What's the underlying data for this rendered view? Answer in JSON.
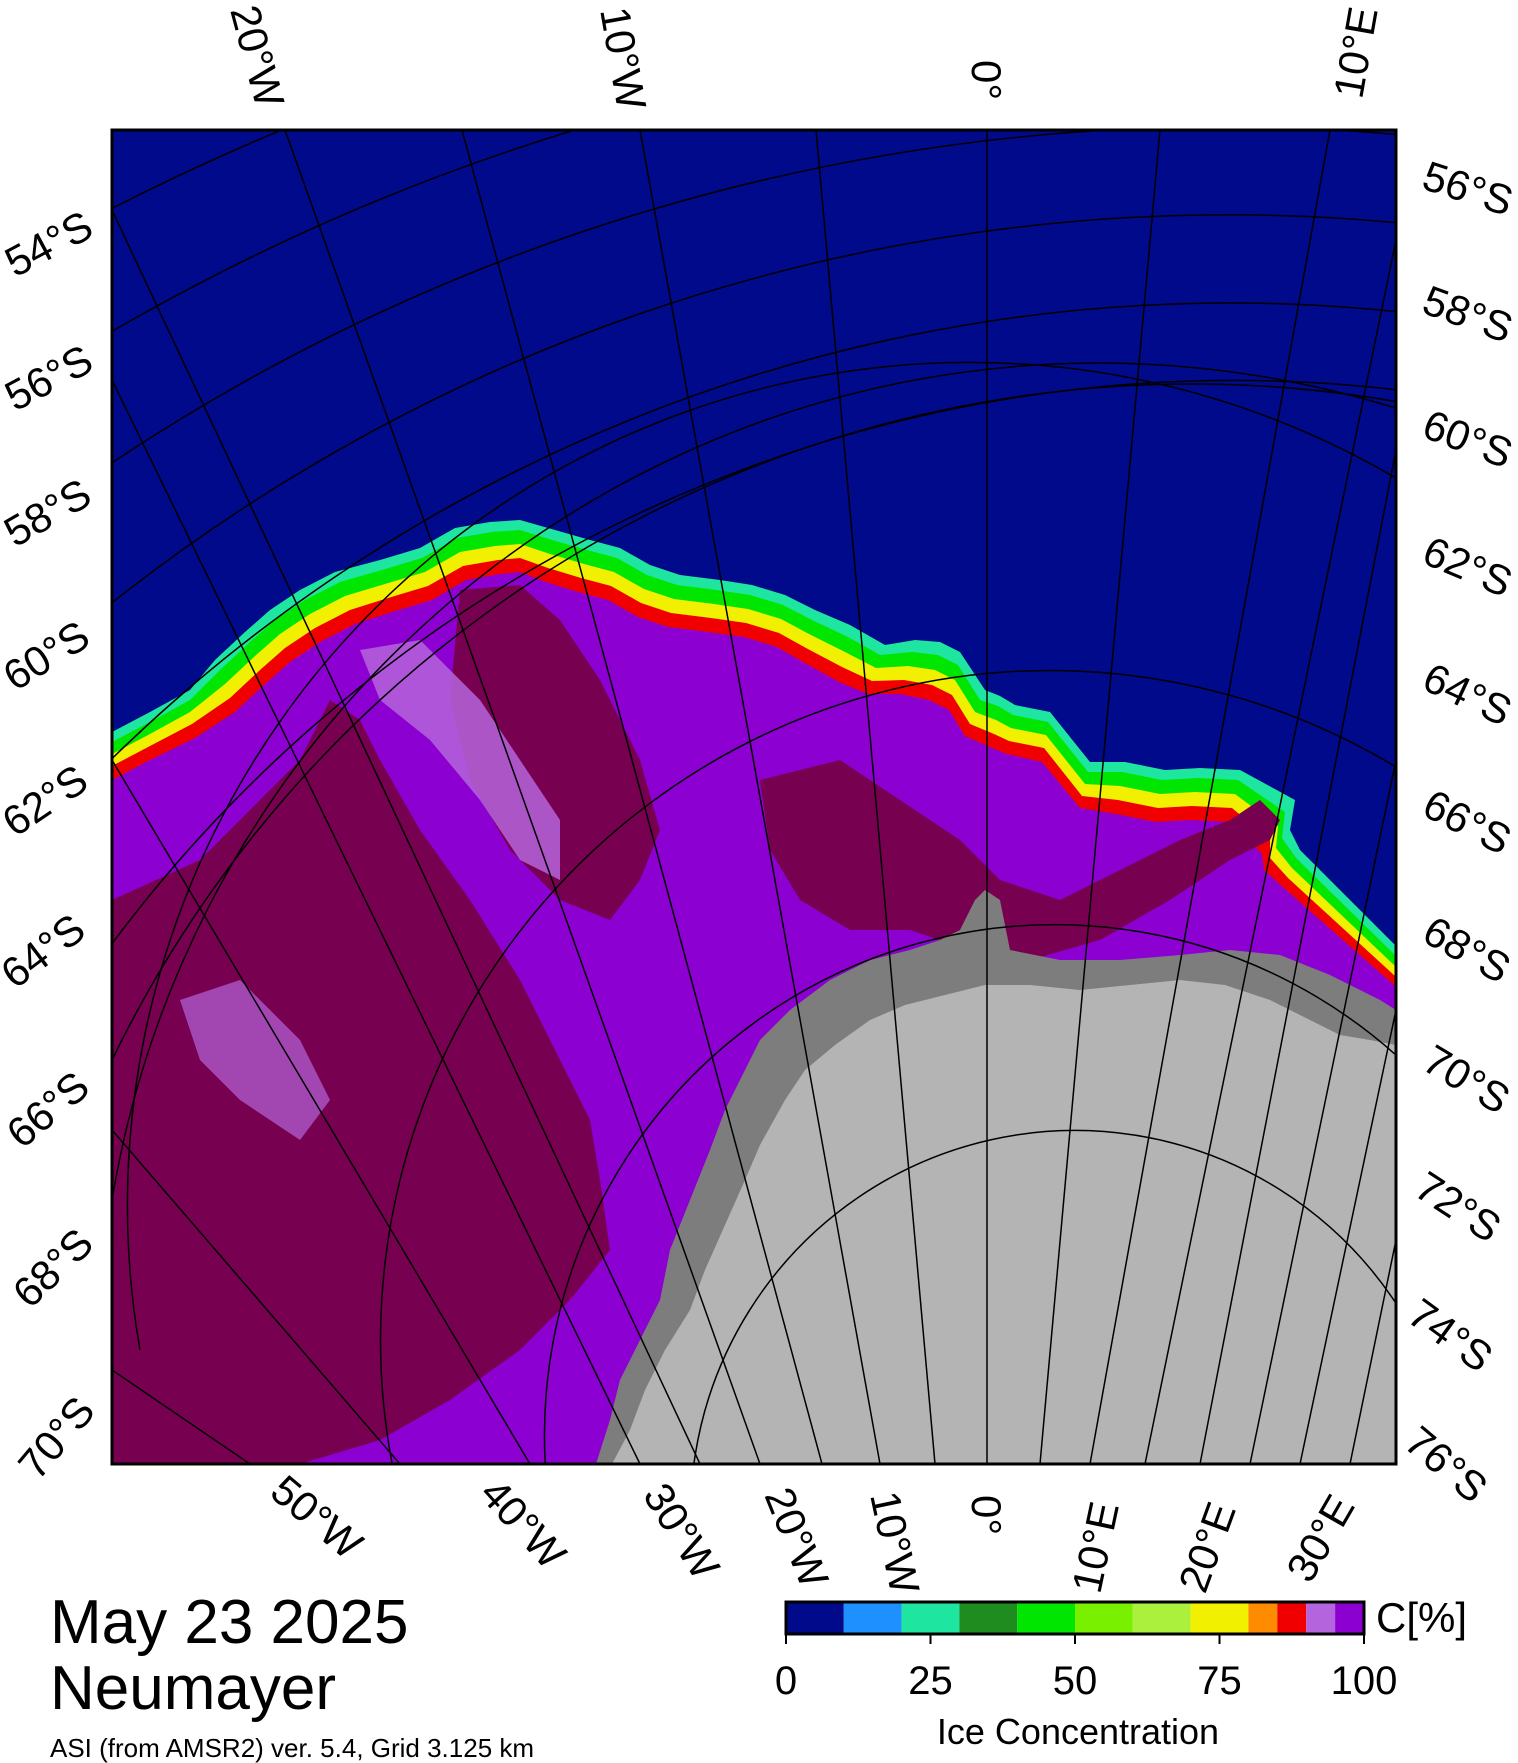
{
  "map": {
    "date": "May 23 2025",
    "station": "Neumayer",
    "source": "ASI (from AMSR2) ver. 5.4,  Grid 3.125 km",
    "colors": {
      "ocean": "#000a8a",
      "land_ice": "#b4b4b4",
      "ice_shelf": "#7d7d7d",
      "graticule": "#000000"
    },
    "top_longitude_labels": [
      "20°W",
      "10°W",
      "0°",
      "10°E"
    ],
    "bottom_longitude_labels": [
      "50°W",
      "40°W",
      "30°W",
      "20°W",
      "10°W",
      "0°",
      "10°E",
      "20°E",
      "30°E"
    ],
    "left_latitude_labels": [
      "54°S",
      "56°S",
      "58°S",
      "60°S",
      "62°S",
      "64°S",
      "66°S",
      "68°S",
      "70°S"
    ],
    "right_latitude_labels": [
      "56°S",
      "58°S",
      "60°S",
      "62°S",
      "64°S",
      "66°S",
      "68°S",
      "70°S",
      "72°S",
      "74°S",
      "76°S"
    ]
  },
  "colorbar": {
    "unit_label": "C[%]",
    "title": "Ice Concentration",
    "tick_labels": [
      "0",
      "25",
      "50",
      "75",
      "100"
    ],
    "bins": [
      {
        "from": 0,
        "to": 10,
        "color": "#000a8a"
      },
      {
        "from": 10,
        "to": 20,
        "color": "#1e90ff"
      },
      {
        "from": 20,
        "to": 30,
        "color": "#1ee6a0"
      },
      {
        "from": 30,
        "to": 40,
        "color": "#1e8c1e"
      },
      {
        "from": 40,
        "to": 50,
        "color": "#00e600"
      },
      {
        "from": 50,
        "to": 60,
        "color": "#78f000"
      },
      {
        "from": 60,
        "to": 70,
        "color": "#aaf03c"
      },
      {
        "from": 70,
        "to": 80,
        "color": "#f0f000"
      },
      {
        "from": 80,
        "to": 85,
        "color": "#ff8c00"
      },
      {
        "from": 85,
        "to": 90,
        "color": "#f00000"
      },
      {
        "from": 90,
        "to": 95,
        "color": "#b464dc"
      },
      {
        "from": 95,
        "to": 100,
        "color": "#8c00d2"
      }
    ]
  }
}
